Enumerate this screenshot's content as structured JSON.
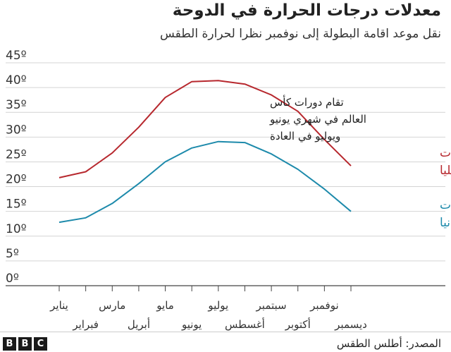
{
  "title": "معدلات درجات الحرارة في الدوحة",
  "subtitle": "نقل موعد اقامة البطولة إلى نوفمبر نظرا لحرارة الطقس",
  "source": "المصدر: أطلس الطقس",
  "logo_letters": [
    "B",
    "B",
    "C"
  ],
  "chart_data": {
    "type": "line",
    "categories": [
      "يناير",
      "فبراير",
      "مارس",
      "أبريل",
      "مايو",
      "يونيو",
      "يوليو",
      "أغسطس",
      "سبتمبر",
      "أكتوبر",
      "نوفمبر",
      "ديسمبر"
    ],
    "y_ticks": [
      "0º",
      "5º",
      "10º",
      "15º",
      "20º",
      "25º",
      "30º",
      "35º",
      "40º",
      "45º"
    ],
    "ylim": [
      0,
      45
    ],
    "grid": true,
    "series": [
      {
        "name": "معدل درجات الحرارة العليا",
        "label_lines": [
          "معدل درجات",
          "الحرارة العليا"
        ],
        "color": "#b7282e",
        "values": [
          21.8,
          23,
          26.8,
          32,
          38,
          41.2,
          41.4,
          40.7,
          38.5,
          35.2,
          29.5,
          24.2
        ]
      },
      {
        "name": "معدل درجات الحرارة الدنيا",
        "label_lines": [
          "معدل درجات",
          "الحرارة الدنيا"
        ],
        "color": "#1d8aab",
        "values": [
          12.8,
          13.7,
          16.6,
          20.6,
          25,
          27.8,
          29.1,
          28.9,
          26.6,
          23.5,
          19.5,
          15
        ]
      }
    ],
    "annotation": [
      "تقام دورات كأس",
      "العالم في شهري يونيو",
      "ويوليو في العادة"
    ]
  }
}
